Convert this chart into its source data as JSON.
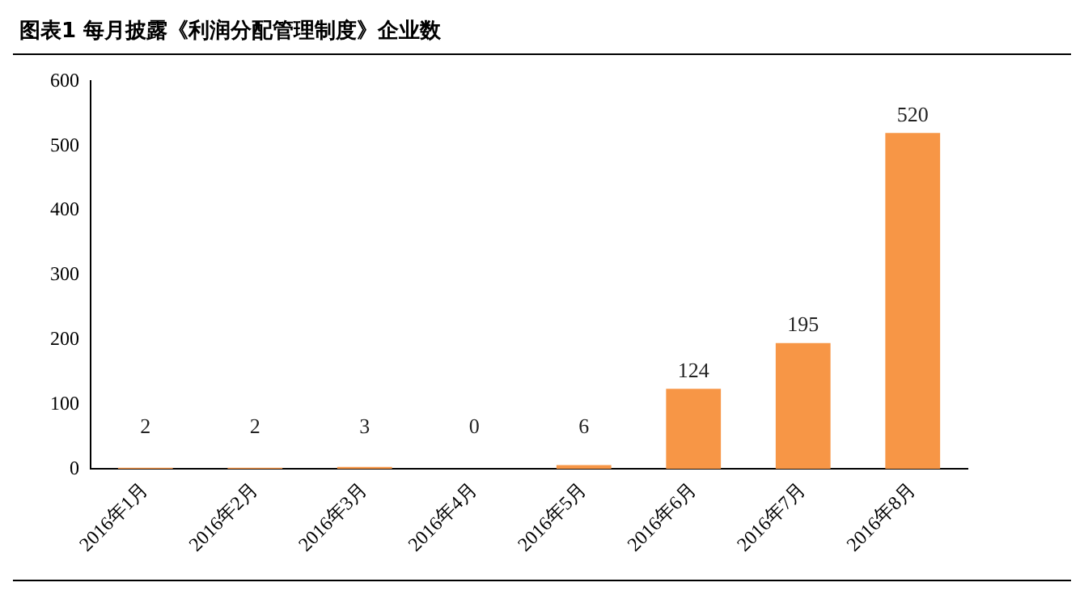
{
  "chart_data": {
    "type": "bar",
    "title": "图表1 每月披露《利润分配管理制度》企业数",
    "categories": [
      "2016年1月",
      "2016年2月",
      "2016年3月",
      "2016年4月",
      "2016年5月",
      "2016年6月",
      "2016年7月",
      "2016年8月"
    ],
    "values": [
      2,
      2,
      3,
      0,
      6,
      124,
      195,
      520
    ],
    "color": "#f79646",
    "ylim": [
      0,
      600
    ],
    "yticks": [
      0,
      100,
      200,
      300,
      400,
      500,
      600
    ],
    "grid": false,
    "legend": false,
    "data_labels": true
  }
}
